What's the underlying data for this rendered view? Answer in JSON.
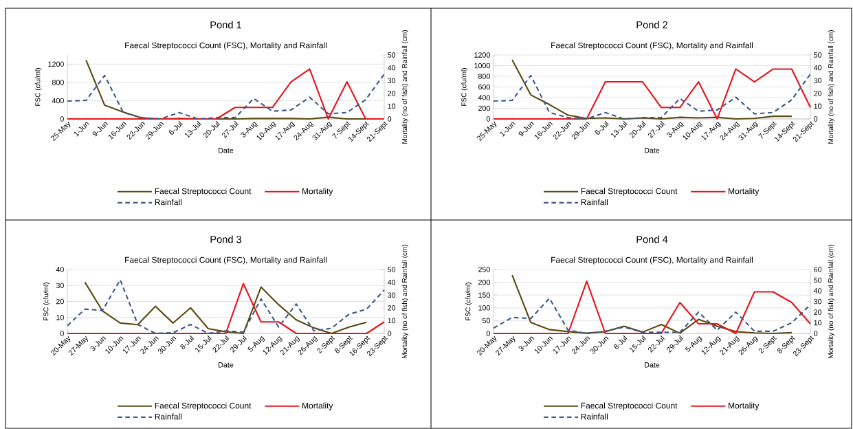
{
  "chart_data": [
    {
      "type": "line",
      "title": "Pond 1",
      "subtitle": "Faecal Streptococci Count (FSC), Mortality and Rainfall",
      "xlabel": "Date",
      "ylabel": "FSC (cfu/ml)",
      "y2label": "Mortality (no of fish) and Rainfall (cm)",
      "categories": [
        "25-May",
        "1-Jun",
        "9-Jun",
        "16-Jun",
        "22-Jun",
        "29-Jun",
        "6-Jul",
        "13-Jul",
        "20-Jul",
        "27-Jul",
        "3-Aug",
        "10-Aug",
        "17-Aug",
        "24-Aug",
        "31-Aug",
        "7-Sept",
        "14-Sept",
        "21-Sept"
      ],
      "series": [
        {
          "name": "Faecal Streptococci Count",
          "color": "#5c4a14",
          "line_style": "solid",
          "values": [
            null,
            1290,
            300,
            150,
            20,
            0,
            10,
            0,
            0,
            0,
            10,
            10,
            10,
            0,
            40,
            0,
            0,
            null
          ]
        },
        {
          "name": "Mortality",
          "color": "#e8141c",
          "line_style": "solid",
          "axis": "y2",
          "values": [
            0,
            0,
            0,
            0,
            0,
            0,
            0,
            0,
            0,
            9,
            9,
            9,
            29,
            39,
            0,
            29,
            0,
            0
          ]
        },
        {
          "name": "Rainfall",
          "color": "#3a5a8c",
          "line_style": "dashed",
          "axis": "y2",
          "values": [
            14,
            14.5,
            34,
            5,
            1,
            0,
            5,
            0,
            1,
            1,
            16,
            6,
            7,
            17,
            4,
            5,
            15,
            35
          ]
        }
      ],
      "ylim": [
        0,
        1400
      ],
      "yticks": [
        0,
        400,
        800,
        1200
      ],
      "y2lim": [
        0,
        50
      ],
      "y2ticks": [
        0,
        10,
        20,
        30,
        40,
        50
      ],
      "grid": "y",
      "legend": "bottom"
    },
    {
      "type": "line",
      "title": "Pond 2",
      "subtitle": "Faecal Streptococci Count (FSC), Mortality and Rainfall",
      "xlabel": "Date",
      "ylabel": "FSC (cfu/ml)",
      "y2label": "Mortality (no of fish) and Rainfall (cm)",
      "categories": [
        "25-May",
        "1-Jun",
        "9-Jun",
        "16-Jun",
        "22-Jun",
        "29-Jun",
        "6-Jul",
        "13-Jul",
        "20-Jul",
        "27-Jul",
        "3-Aug",
        "10-Aug",
        "17-Aug",
        "24-Aug",
        "31-Aug",
        "7-Sept",
        "14-Sept",
        "21-Sept"
      ],
      "series": [
        {
          "name": "Faecal Streptococci Count",
          "color": "#5c4a14",
          "line_style": "solid",
          "values": [
            null,
            1110,
            450,
            270,
            70,
            10,
            20,
            0,
            20,
            0,
            30,
            20,
            30,
            0,
            10,
            50,
            50,
            null
          ]
        },
        {
          "name": "Mortality",
          "color": "#e8141c",
          "line_style": "solid",
          "axis": "y2",
          "values": [
            0,
            0,
            0,
            0,
            0,
            0,
            29,
            29,
            29,
            9,
            9,
            29,
            0,
            39,
            29,
            39,
            39,
            9
          ]
        },
        {
          "name": "Rainfall",
          "color": "#3a5a8c",
          "line_style": "dashed",
          "axis": "y2",
          "values": [
            14,
            14.5,
            34,
            5,
            1,
            0,
            5,
            0,
            1,
            1,
            16,
            6,
            7,
            17,
            4,
            5,
            15,
            35
          ]
        }
      ],
      "ylim": [
        0,
        1200
      ],
      "yticks": [
        0,
        200,
        400,
        600,
        800,
        1000,
        1200
      ],
      "y2lim": [
        0,
        50
      ],
      "y2ticks": [
        0,
        10,
        20,
        30,
        40,
        50
      ],
      "grid": "y",
      "legend": "bottom"
    },
    {
      "type": "line",
      "title": "Pond 3",
      "subtitle": "Faecal Streptococci Count (FSC), Mortality and Rainfall",
      "xlabel": "Date",
      "ylabel": "FSC (cfu/ml)",
      "y2label": "Mortality (no of fish) and Rainfall (cm)",
      "categories": [
        "20-May",
        "27-May",
        "3-Jun",
        "10-Jun",
        "17-Jun",
        "24-Jun",
        "30-Jun",
        "8-Jul",
        "15-Jul",
        "22-Jul",
        "29-Jul",
        "5-Aug",
        "12-Aug",
        "21-Aug",
        "26-Aug",
        "2-Sept",
        "8-Sept",
        "16-Sept",
        "23-Sept"
      ],
      "series": [
        {
          "name": "Faecal Streptococci Count",
          "color": "#5c4a14",
          "line_style": "solid",
          "values": [
            null,
            32,
            14,
            6.5,
            5.5,
            17,
            6.5,
            16,
            3,
            1,
            0,
            29,
            18,
            8.5,
            3.5,
            0,
            4,
            7,
            null
          ]
        },
        {
          "name": "Mortality",
          "color": "#e8141c",
          "line_style": "solid",
          "axis": "y2",
          "values": [
            0,
            0,
            0,
            0,
            0,
            0,
            0,
            0,
            0,
            0,
            39,
            9,
            9,
            0,
            0,
            0,
            0,
            0,
            9
          ]
        },
        {
          "name": "Rainfall",
          "color": "#3a5a8c",
          "line_style": "dashed",
          "axis": "y2",
          "values": [
            6,
            19,
            18,
            42,
            7,
            0,
            0.5,
            7,
            0,
            2,
            1,
            27,
            5,
            23,
            2,
            4,
            15,
            19,
            34
          ]
        }
      ],
      "ylim": [
        0,
        40
      ],
      "yticks": [
        0,
        10,
        20,
        30,
        40
      ],
      "y2lim": [
        0,
        50
      ],
      "y2ticks": [
        0,
        10,
        20,
        30,
        40,
        50
      ],
      "grid": "y",
      "legend": "bottom"
    },
    {
      "type": "line",
      "title": "Pond 4",
      "subtitle": "Faecal Streptococci Count (FSC), Mortality and Rainfall",
      "xlabel": "Date",
      "ylabel": "FSC (cfu/ml)",
      "y2label": "Mortality (no of fish) and Rainfall (cm)",
      "categories": [
        "20-May",
        "27-May",
        "3-Jun",
        "10-Jun",
        "17-Jun",
        "24-Jun",
        "30-Jun",
        "8-Jul",
        "15-Jul",
        "22-Jul",
        "29-Jul",
        "5-Aug",
        "12-Aug",
        "21-Aug",
        "26-Aug",
        "2-Sept",
        "8-Sept",
        "23-Sept"
      ],
      "series": [
        {
          "name": "Faecal Streptococci Count",
          "color": "#5c4a14",
          "line_style": "solid",
          "values": [
            null,
            228,
            43,
            15,
            7,
            1,
            7,
            28,
            5,
            35,
            1,
            55,
            28,
            7,
            2,
            0,
            3,
            null
          ]
        },
        {
          "name": "Mortality",
          "color": "#e8141c",
          "line_style": "solid",
          "axis": "y2",
          "values": [
            0,
            0,
            0,
            0,
            0,
            49,
            0,
            0,
            0,
            0,
            29,
            9,
            9,
            0,
            39,
            39,
            29,
            9
          ]
        },
        {
          "name": "Rainfall",
          "color": "#3a5a8c",
          "line_style": "dashed",
          "axis": "y2",
          "values": [
            5,
            15,
            14,
            33,
            3,
            0,
            2,
            6,
            1,
            1,
            1,
            20,
            3,
            20,
            2,
            2,
            10,
            27
          ]
        }
      ],
      "ylim": [
        0,
        250
      ],
      "yticks": [
        0,
        50,
        100,
        150,
        200,
        250
      ],
      "y2lim": [
        0,
        60
      ],
      "y2ticks": [
        0,
        10,
        20,
        30,
        40,
        50,
        60
      ],
      "grid": "y",
      "legend": "bottom"
    }
  ]
}
